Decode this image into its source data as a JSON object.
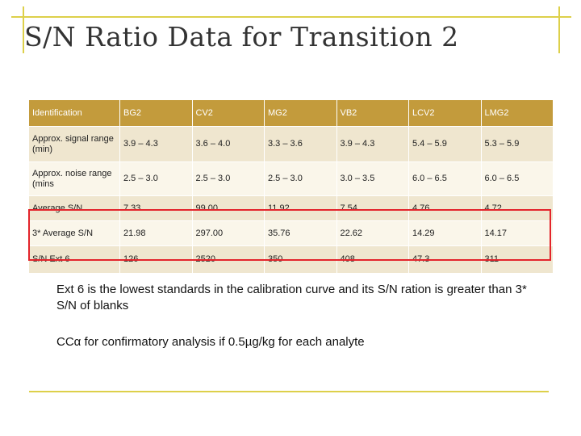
{
  "slide": {
    "title": "S/N Ratio Data for Transition 2",
    "accent_color": "#ddd04a",
    "header_color": "#c39b3c",
    "highlight_color": "#e3242b"
  },
  "table": {
    "headers": [
      "Identification",
      "BG2",
      "CV2",
      "MG2",
      "VB2",
      "LCV2",
      "LMG2"
    ],
    "rows": [
      [
        "Approx. signal range (min)",
        "3.9 – 4.3",
        "3.6 – 4.0",
        "3.3 – 3.6",
        "3.9 – 4.3",
        "5.4 – 5.9",
        "5.3 – 5.9"
      ],
      [
        "Approx. noise range (mins",
        "2.5 – 3.0",
        "2.5 – 3.0",
        "2.5 – 3.0",
        "3.0 – 3.5",
        "6.0 – 6.5",
        "6.0 – 6.5"
      ],
      [
        "Average S/N",
        "7.33",
        "99.00",
        "11.92",
        "7.54",
        "4.76",
        "4.72"
      ],
      [
        "3* Average S/N",
        "21.98",
        "297.00",
        "35.76",
        "22.62",
        "14.29",
        "14.17"
      ],
      [
        "S/N Ext 6",
        "126",
        "2520",
        "350",
        "408",
        "47.3",
        "311"
      ]
    ]
  },
  "notes": [
    "Ext 6 is the lowest standards in the calibration curve and its S/N ration is greater than 3* S/N of blanks",
    "CCα for confirmatory analysis if 0.5µg/kg for each analyte"
  ]
}
